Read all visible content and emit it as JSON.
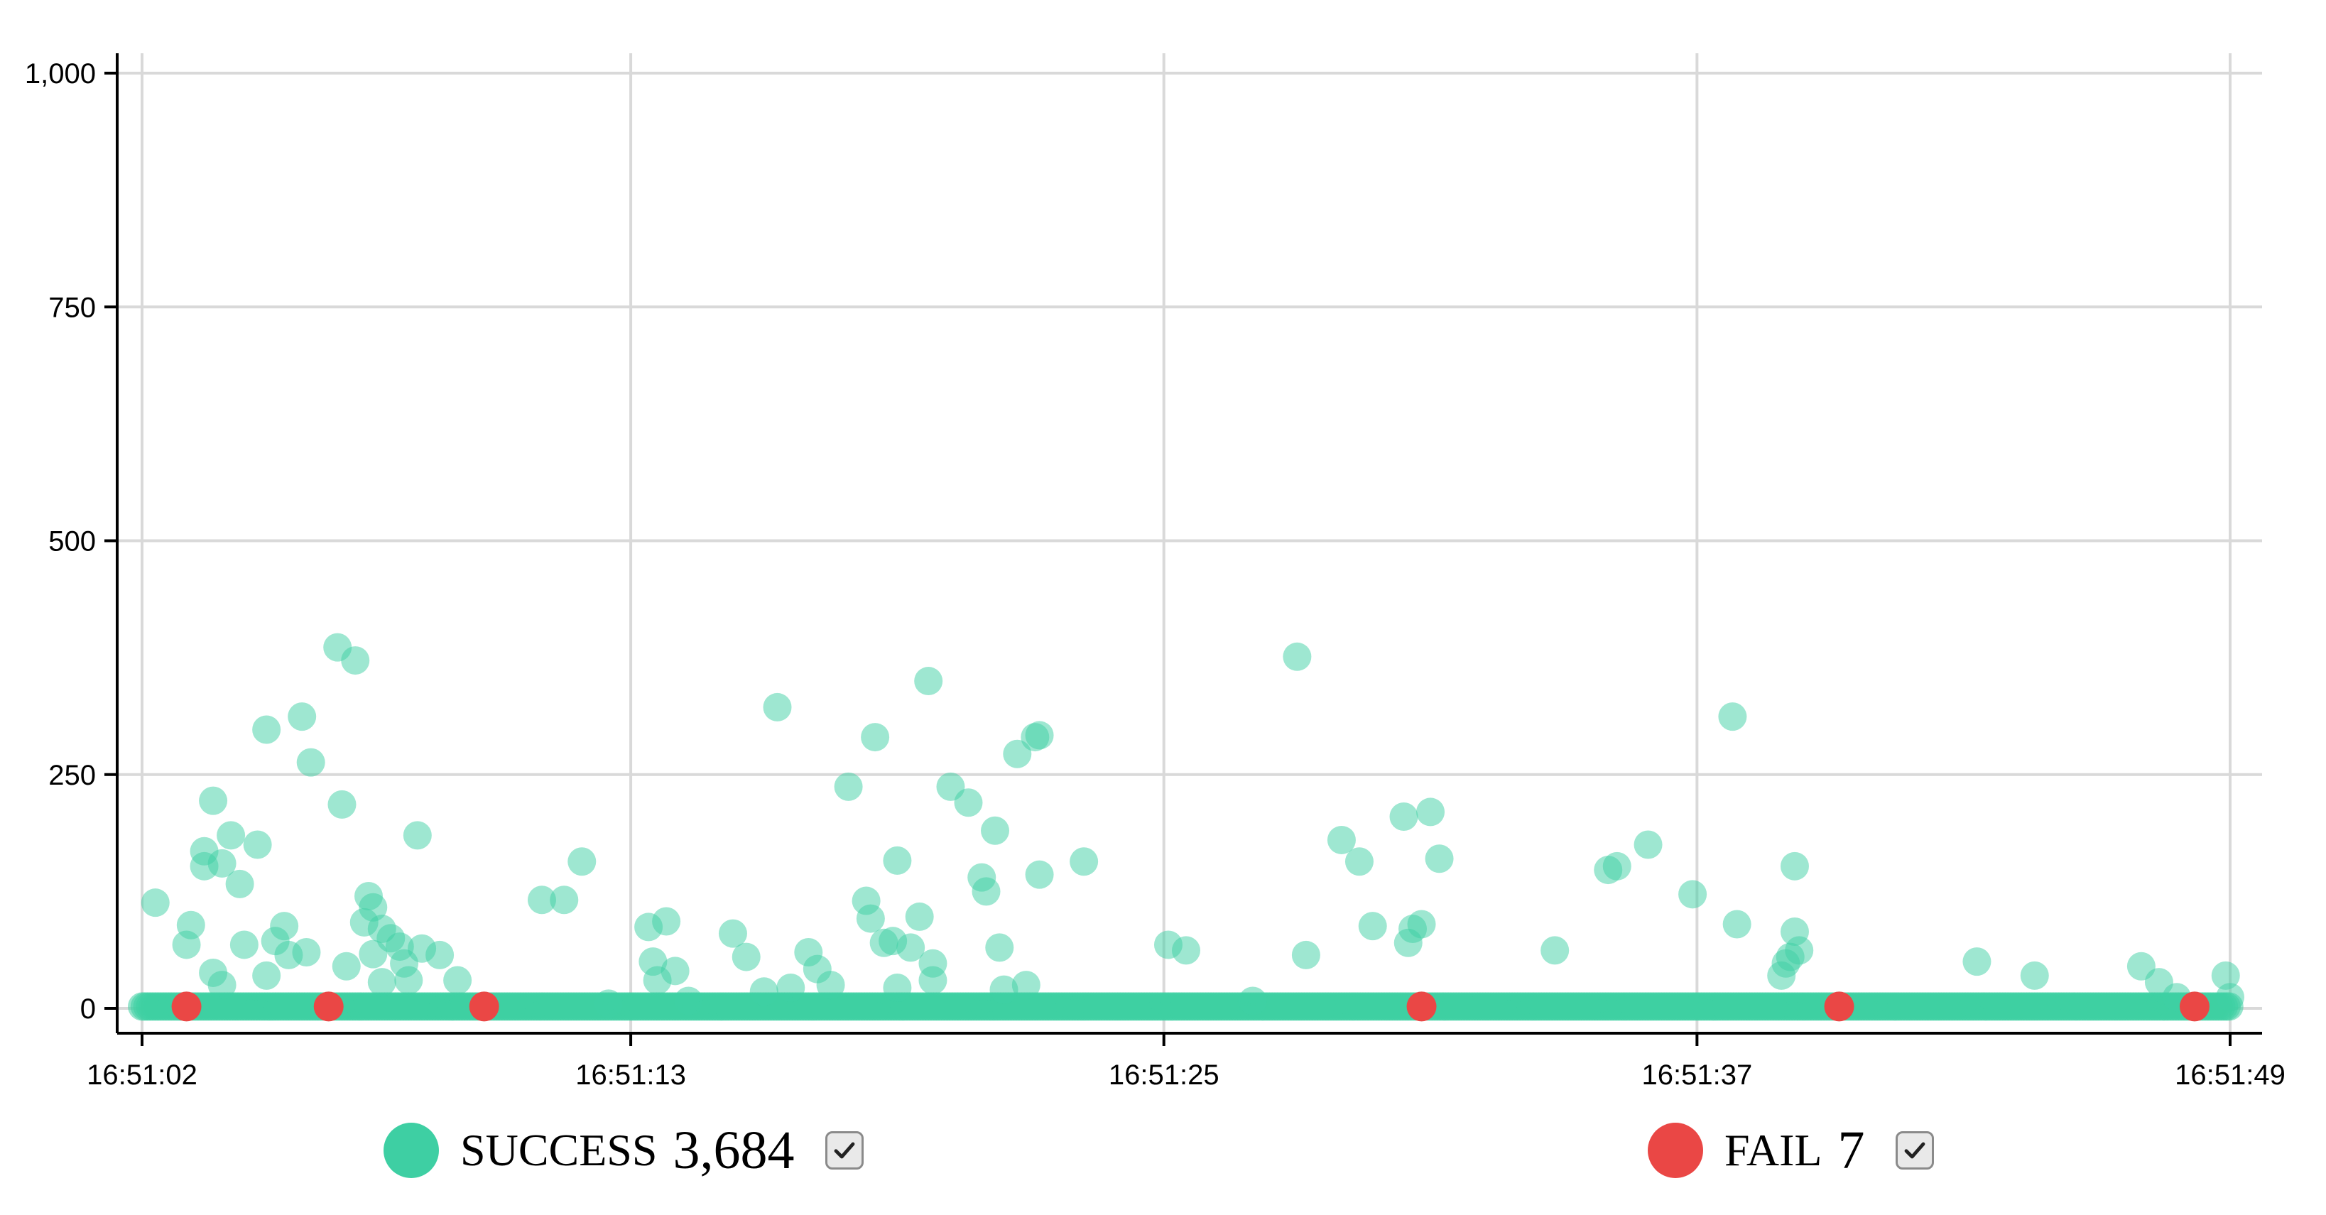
{
  "chart_data": {
    "type": "scatter",
    "title": "",
    "xlabel": "",
    "ylabel": "",
    "x_start": "16:51:02",
    "x_end": "16:51:49",
    "x_ticks": [
      "16:51:02",
      "16:51:13",
      "16:51:25",
      "16:51:37",
      "16:51:49"
    ],
    "y_ticks": [
      0,
      250,
      500,
      750,
      1000
    ],
    "y_tick_labels": [
      "0",
      "250",
      "500",
      "750",
      "1,000"
    ],
    "ylim": [
      0,
      1000
    ],
    "grid": true,
    "legend_position": "bottom",
    "series": [
      {
        "name": "SUCCESS",
        "count": "3,684",
        "color": "#3ecfa3",
        "baseline_value": 2,
        "baseline_range": [
          "16:51:02",
          "16:51:49"
        ],
        "points": [
          [
            "16:51:02.3",
            113
          ],
          [
            "16:51:03.0",
            68
          ],
          [
            "16:51:03.1",
            89
          ],
          [
            "16:51:03.4",
            168
          ],
          [
            "16:51:03.4",
            152
          ],
          [
            "16:51:03.6",
            38
          ],
          [
            "16:51:03.6",
            222
          ],
          [
            "16:51:03.8",
            155
          ],
          [
            "16:51:03.8",
            25
          ],
          [
            "16:51:04.0",
            185
          ],
          [
            "16:51:04.2",
            133
          ],
          [
            "16:51:04.3",
            68
          ],
          [
            "16:51:04.6",
            175
          ],
          [
            "16:51:04.8",
            298
          ],
          [
            "16:51:04.8",
            35
          ],
          [
            "16:51:05.0",
            72
          ],
          [
            "16:51:05.2",
            88
          ],
          [
            "16:51:05.3",
            57
          ],
          [
            "16:51:05.6",
            312
          ],
          [
            "16:51:05.8",
            263
          ],
          [
            "16:51:05.7",
            60
          ],
          [
            "16:51:06.4",
            386
          ],
          [
            "16:51:06.5",
            218
          ],
          [
            "16:51:06.6",
            45
          ],
          [
            "16:51:06.8",
            372
          ],
          [
            "16:51:07.0",
            92
          ],
          [
            "16:51:07.1",
            120
          ],
          [
            "16:51:07.2",
            108
          ],
          [
            "16:51:07.2",
            58
          ],
          [
            "16:51:07.4",
            85
          ],
          [
            "16:51:07.4",
            28
          ],
          [
            "16:51:07.6",
            75
          ],
          [
            "16:51:07.8",
            66
          ],
          [
            "16:51:07.9",
            48
          ],
          [
            "16:51:08.0",
            30
          ],
          [
            "16:51:08.2",
            185
          ],
          [
            "16:51:08.3",
            64
          ],
          [
            "16:51:08.7",
            57
          ],
          [
            "16:51:09.1",
            30
          ],
          [
            "16:51:11.0",
            116
          ],
          [
            "16:51:11.5",
            116
          ],
          [
            "16:51:11.9",
            157
          ],
          [
            "16:51:12.5",
            5
          ],
          [
            "16:51:13.4",
            87
          ],
          [
            "16:51:13.5",
            50
          ],
          [
            "16:51:13.6",
            30
          ],
          [
            "16:51:13.8",
            93
          ],
          [
            "16:51:14.0",
            40
          ],
          [
            "16:51:14.3",
            8
          ],
          [
            "16:51:15.3",
            80
          ],
          [
            "16:51:15.6",
            55
          ],
          [
            "16:51:16.0",
            18
          ],
          [
            "16:51:16.3",
            322
          ],
          [
            "16:51:16.6",
            22
          ],
          [
            "16:51:17.0",
            60
          ],
          [
            "16:51:17.2",
            42
          ],
          [
            "16:51:17.5",
            25
          ],
          [
            "16:51:17.9",
            237
          ],
          [
            "16:51:18.3",
            115
          ],
          [
            "16:51:18.4",
            96
          ],
          [
            "16:51:18.5",
            290
          ],
          [
            "16:51:18.7",
            70
          ],
          [
            "16:51:18.9",
            72
          ],
          [
            "16:51:19.0",
            158
          ],
          [
            "16:51:19.0",
            22
          ],
          [
            "16:51:19.3",
            65
          ],
          [
            "16:51:19.5",
            98
          ],
          [
            "16:51:19.7",
            350
          ],
          [
            "16:51:19.8",
            48
          ],
          [
            "16:51:19.8",
            30
          ],
          [
            "16:51:20.2",
            237
          ],
          [
            "16:51:20.6",
            220
          ],
          [
            "16:51:20.9",
            140
          ],
          [
            "16:51:21.0",
            125
          ],
          [
            "16:51:21.2",
            190
          ],
          [
            "16:51:21.3",
            65
          ],
          [
            "16:51:21.4",
            20
          ],
          [
            "16:51:21.7",
            272
          ],
          [
            "16:51:21.9",
            25
          ],
          [
            "16:51:22.1",
            290
          ],
          [
            "16:51:22.2",
            292
          ],
          [
            "16:51:22.2",
            143
          ],
          [
            "16:51:23.2",
            157
          ],
          [
            "16:51:25.1",
            68
          ],
          [
            "16:51:25.5",
            62
          ],
          [
            "16:51:27.0",
            8
          ],
          [
            "16:51:28.0",
            376
          ],
          [
            "16:51:28.2",
            57
          ],
          [
            "16:51:29.0",
            180
          ],
          [
            "16:51:29.4",
            157
          ],
          [
            "16:51:29.7",
            88
          ],
          [
            "16:51:30.4",
            205
          ],
          [
            "16:51:30.5",
            70
          ],
          [
            "16:51:30.6",
            85
          ],
          [
            "16:51:30.8",
            90
          ],
          [
            "16:51:31.0",
            210
          ],
          [
            "16:51:31.2",
            160
          ],
          [
            "16:51:33.8",
            62
          ],
          [
            "16:51:35.0",
            148
          ],
          [
            "16:51:35.2",
            152
          ],
          [
            "16:51:35.9",
            175
          ],
          [
            "16:51:36.9",
            122
          ],
          [
            "16:51:37.8",
            312
          ],
          [
            "16:51:37.9",
            90
          ],
          [
            "16:51:38.9",
            35
          ],
          [
            "16:51:39.0",
            48
          ],
          [
            "16:51:39.1",
            55
          ],
          [
            "16:51:39.2",
            152
          ],
          [
            "16:51:39.2",
            82
          ],
          [
            "16:51:39.3",
            62
          ],
          [
            "16:51:43.3",
            50
          ],
          [
            "16:51:44.6",
            35
          ],
          [
            "16:51:47.0",
            45
          ],
          [
            "16:51:47.4",
            28
          ],
          [
            "16:51:47.8",
            12
          ],
          [
            "16:51:48.9",
            35
          ],
          [
            "16:51:49.0",
            12
          ]
        ]
      },
      {
        "name": "FAIL",
        "count": "7",
        "color": "#ea4745",
        "points": [
          [
            "16:51:03.0",
            2
          ],
          [
            "16:51:06.2",
            2
          ],
          [
            "16:51:09.7",
            2
          ],
          [
            "16:51:30.8",
            2
          ],
          [
            "16:51:40.2",
            2
          ],
          [
            "16:51:48.2",
            2
          ]
        ]
      }
    ]
  }
}
